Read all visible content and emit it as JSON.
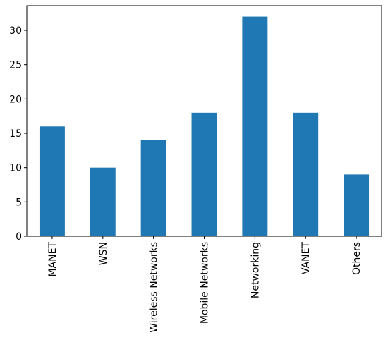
{
  "chart_data": {
    "type": "bar",
    "categories": [
      "MANET",
      "WSN",
      "Wireless Networks",
      "Mobile Networks",
      "Networking",
      "VANET",
      "Others"
    ],
    "values": [
      16,
      10,
      14,
      18,
      32,
      18,
      9
    ],
    "color": "#1f77b4",
    "ylim": [
      0,
      33.6
    ],
    "yticks": [
      0,
      5,
      10,
      15,
      20,
      25,
      30
    ],
    "grid": false
  }
}
